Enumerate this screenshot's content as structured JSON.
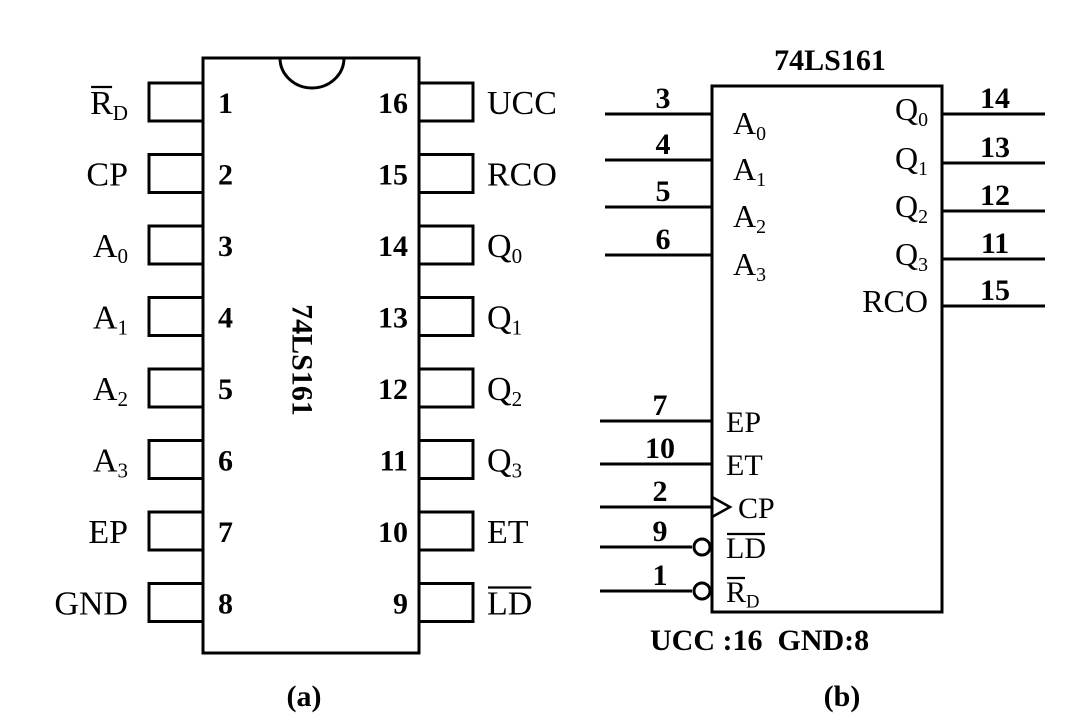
{
  "diagram_a": {
    "caption": "(a)",
    "chip_label": "74LS161",
    "left_pins": [
      {
        "num": "1",
        "main": "R",
        "sub": "D",
        "overline": true
      },
      {
        "num": "2",
        "main": "CP",
        "sub": "",
        "overline": false
      },
      {
        "num": "3",
        "main": "A",
        "sub": "0",
        "overline": false
      },
      {
        "num": "4",
        "main": "A",
        "sub": "1",
        "overline": false
      },
      {
        "num": "5",
        "main": "A",
        "sub": "2",
        "overline": false
      },
      {
        "num": "6",
        "main": "A",
        "sub": "3",
        "overline": false
      },
      {
        "num": "7",
        "main": "EP",
        "sub": "",
        "overline": false
      },
      {
        "num": "8",
        "main": "GND",
        "sub": "",
        "overline": false
      }
    ],
    "right_pins": [
      {
        "num": "16",
        "main": "UCC",
        "sub": "",
        "overline": false
      },
      {
        "num": "15",
        "main": "RCO",
        "sub": "",
        "overline": false
      },
      {
        "num": "14",
        "main": "Q",
        "sub": "0",
        "overline": false
      },
      {
        "num": "13",
        "main": "Q",
        "sub": "1",
        "overline": false
      },
      {
        "num": "12",
        "main": "Q",
        "sub": "2",
        "overline": false
      },
      {
        "num": "11",
        "main": "Q",
        "sub": "3",
        "overline": false
      },
      {
        "num": "10",
        "main": "ET",
        "sub": "",
        "overline": false
      },
      {
        "num": "9",
        "main": "LD",
        "sub": "",
        "overline": true
      }
    ]
  },
  "diagram_b": {
    "caption": "(b)",
    "title": "74LS161",
    "power_note": "UCC :16  GND:8",
    "inputs_top": [
      {
        "num": "3",
        "main": "A",
        "sub": "0"
      },
      {
        "num": "4",
        "main": "A",
        "sub": "1"
      },
      {
        "num": "5",
        "main": "A",
        "sub": "2"
      },
      {
        "num": "6",
        "main": "A",
        "sub": "3"
      }
    ],
    "outputs": [
      {
        "num": "14",
        "main": "Q",
        "sub": "0"
      },
      {
        "num": "13",
        "main": "Q",
        "sub": "1"
      },
      {
        "num": "12",
        "main": "Q",
        "sub": "2"
      },
      {
        "num": "11",
        "main": "Q",
        "sub": "3"
      },
      {
        "num": "15",
        "main": "RCO",
        "sub": ""
      }
    ],
    "inputs_bottom": [
      {
        "num": "7",
        "main": "EP",
        "overline": false
      },
      {
        "num": "10",
        "main": "ET",
        "overline": false
      },
      {
        "num": "2",
        "main": "CP",
        "overline": false
      },
      {
        "num": "9",
        "main": "LD",
        "overline": true
      },
      {
        "num": "1",
        "main": "R",
        "sub": "D",
        "overline": true
      }
    ]
  }
}
